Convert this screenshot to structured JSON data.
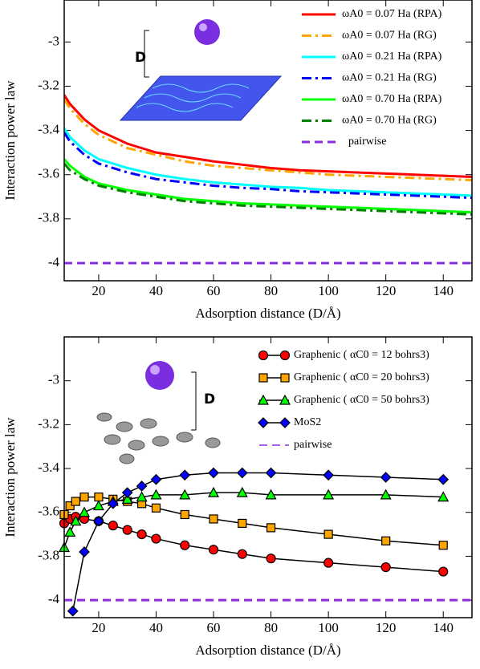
{
  "chart_data": [
    {
      "type": "line",
      "x_label": "Adsorption distance (D/Å)",
      "y_label": "Interaction power law",
      "inset_label": "D",
      "xlim": [
        8,
        150
      ],
      "xticks": [
        20,
        40,
        60,
        80,
        100,
        120,
        140
      ],
      "ylim": [
        -4.08,
        -2.81
      ],
      "yticks": [
        -4,
        -3.8,
        -3.6,
        -3.4,
        -3.2,
        -3
      ],
      "x": [
        8,
        10,
        15,
        20,
        30,
        40,
        50,
        60,
        70,
        80,
        90,
        100,
        110,
        120,
        130,
        140,
        150
      ],
      "series": [
        {
          "name": "ωA0 = 0.07 Ha (RPA)",
          "color": "#ff0000",
          "dash": "solid",
          "values": [
            -3.24,
            -3.28,
            -3.35,
            -3.4,
            -3.46,
            -3.5,
            -3.52,
            -3.54,
            -3.555,
            -3.57,
            -3.58,
            -3.585,
            -3.59,
            -3.595,
            -3.6,
            -3.605,
            -3.61
          ]
        },
        {
          "name": "ωA0 = 0.07 Ha (RG)",
          "color": "#ffa500",
          "dash": "dashdot",
          "values": [
            -3.26,
            -3.3,
            -3.37,
            -3.42,
            -3.48,
            -3.51,
            -3.54,
            -3.56,
            -3.57,
            -3.58,
            -3.59,
            -3.6,
            -3.605,
            -3.61,
            -3.615,
            -3.62,
            -3.625
          ]
        },
        {
          "name": "ωA0 = 0.21 Ha (RPA)",
          "color": "#00ffff",
          "dash": "solid",
          "values": [
            -3.39,
            -3.43,
            -3.49,
            -3.53,
            -3.57,
            -3.6,
            -3.62,
            -3.635,
            -3.645,
            -3.655,
            -3.66,
            -3.67,
            -3.675,
            -3.68,
            -3.685,
            -3.69,
            -3.695
          ]
        },
        {
          "name": "ωA0 = 0.21 Ha (RG)",
          "color": "#0000ff",
          "dash": "dashdot",
          "values": [
            -3.41,
            -3.45,
            -3.51,
            -3.55,
            -3.59,
            -3.62,
            -3.635,
            -3.65,
            -3.66,
            -3.665,
            -3.675,
            -3.68,
            -3.685,
            -3.69,
            -3.695,
            -3.7,
            -3.705
          ]
        },
        {
          "name": "ωA0 = 0.70 Ha (RPA)",
          "color": "#00ff00",
          "dash": "solid",
          "values": [
            -3.53,
            -3.56,
            -3.61,
            -3.64,
            -3.67,
            -3.69,
            -3.71,
            -3.72,
            -3.73,
            -3.735,
            -3.74,
            -3.745,
            -3.75,
            -3.755,
            -3.76,
            -3.765,
            -3.77
          ]
        },
        {
          "name": "ωA0 = 0.70 Ha (RG)",
          "color": "#008000",
          "dash": "dashdot",
          "values": [
            -3.55,
            -3.58,
            -3.62,
            -3.65,
            -3.68,
            -3.7,
            -3.72,
            -3.73,
            -3.74,
            -3.745,
            -3.75,
            -3.755,
            -3.76,
            -3.765,
            -3.77,
            -3.775,
            -3.78
          ]
        },
        {
          "name": "pairwise",
          "color": "#8a2be2",
          "dash": "dashed",
          "values": [
            -4,
            -4,
            -4,
            -4,
            -4,
            -4,
            -4,
            -4,
            -4,
            -4,
            -4,
            -4,
            -4,
            -4,
            -4,
            -4,
            -4
          ]
        }
      ]
    },
    {
      "type": "line",
      "x_label": "Adsorption distance (D/Å)",
      "y_label": "Interaction power law",
      "inset_label": "D",
      "xlim": [
        8,
        150
      ],
      "xticks": [
        20,
        40,
        60,
        80,
        100,
        120,
        140
      ],
      "ylim": [
        -4.08,
        -2.8
      ],
      "yticks": [
        -4,
        -3.8,
        -3.6,
        -3.4,
        -3.2,
        -3
      ],
      "line_color": "#000000",
      "series": [
        {
          "name": "Graphenic ( αC0 = 12 bohrs3)",
          "color": "#ff0000",
          "marker": "circle",
          "dash": "solid",
          "x": [
            8,
            10,
            12,
            15,
            20,
            25,
            30,
            35,
            40,
            50,
            60,
            70,
            80,
            100,
            120,
            140
          ],
          "values": [
            -3.65,
            -3.63,
            -3.62,
            -3.63,
            -3.64,
            -3.66,
            -3.68,
            -3.7,
            -3.72,
            -3.75,
            -3.77,
            -3.79,
            -3.81,
            -3.83,
            -3.85,
            -3.87
          ]
        },
        {
          "name": "Graphenic ( αC0 = 20 bohrs3)",
          "color": "#ffa500",
          "marker": "square",
          "dash": "solid",
          "x": [
            8,
            10,
            12,
            15,
            20,
            25,
            30,
            35,
            40,
            50,
            60,
            70,
            80,
            100,
            120,
            140
          ],
          "values": [
            -3.61,
            -3.57,
            -3.55,
            -3.53,
            -3.53,
            -3.54,
            -3.55,
            -3.56,
            -3.58,
            -3.61,
            -3.63,
            -3.65,
            -3.67,
            -3.7,
            -3.73,
            -3.75
          ]
        },
        {
          "name": "Graphenic ( αC0 = 50 bohrs3)",
          "color": "#00ff00",
          "marker": "triangle",
          "dash": "solid",
          "x": [
            8,
            10,
            12,
            15,
            20,
            25,
            30,
            35,
            40,
            50,
            60,
            70,
            80,
            100,
            120,
            140
          ],
          "values": [
            -3.76,
            -3.69,
            -3.64,
            -3.6,
            -3.57,
            -3.55,
            -3.54,
            -3.53,
            -3.52,
            -3.52,
            -3.51,
            -3.51,
            -3.52,
            -3.52,
            -3.52,
            -3.53
          ]
        },
        {
          "name": "MoS2",
          "color": "#0000ff",
          "marker": "diamond",
          "dash": "solid",
          "x": [
            11,
            15,
            20,
            25,
            30,
            35,
            40,
            50,
            60,
            70,
            80,
            100,
            120,
            140
          ],
          "values": [
            -4.05,
            -3.78,
            -3.64,
            -3.56,
            -3.51,
            -3.48,
            -3.45,
            -3.43,
            -3.42,
            -3.42,
            -3.42,
            -3.43,
            -3.44,
            -3.45
          ]
        },
        {
          "name": "pairwise",
          "color": "#8a2be2",
          "dash": "dashed",
          "x": [
            8,
            150
          ],
          "values": [
            -4,
            -4
          ]
        }
      ]
    }
  ]
}
